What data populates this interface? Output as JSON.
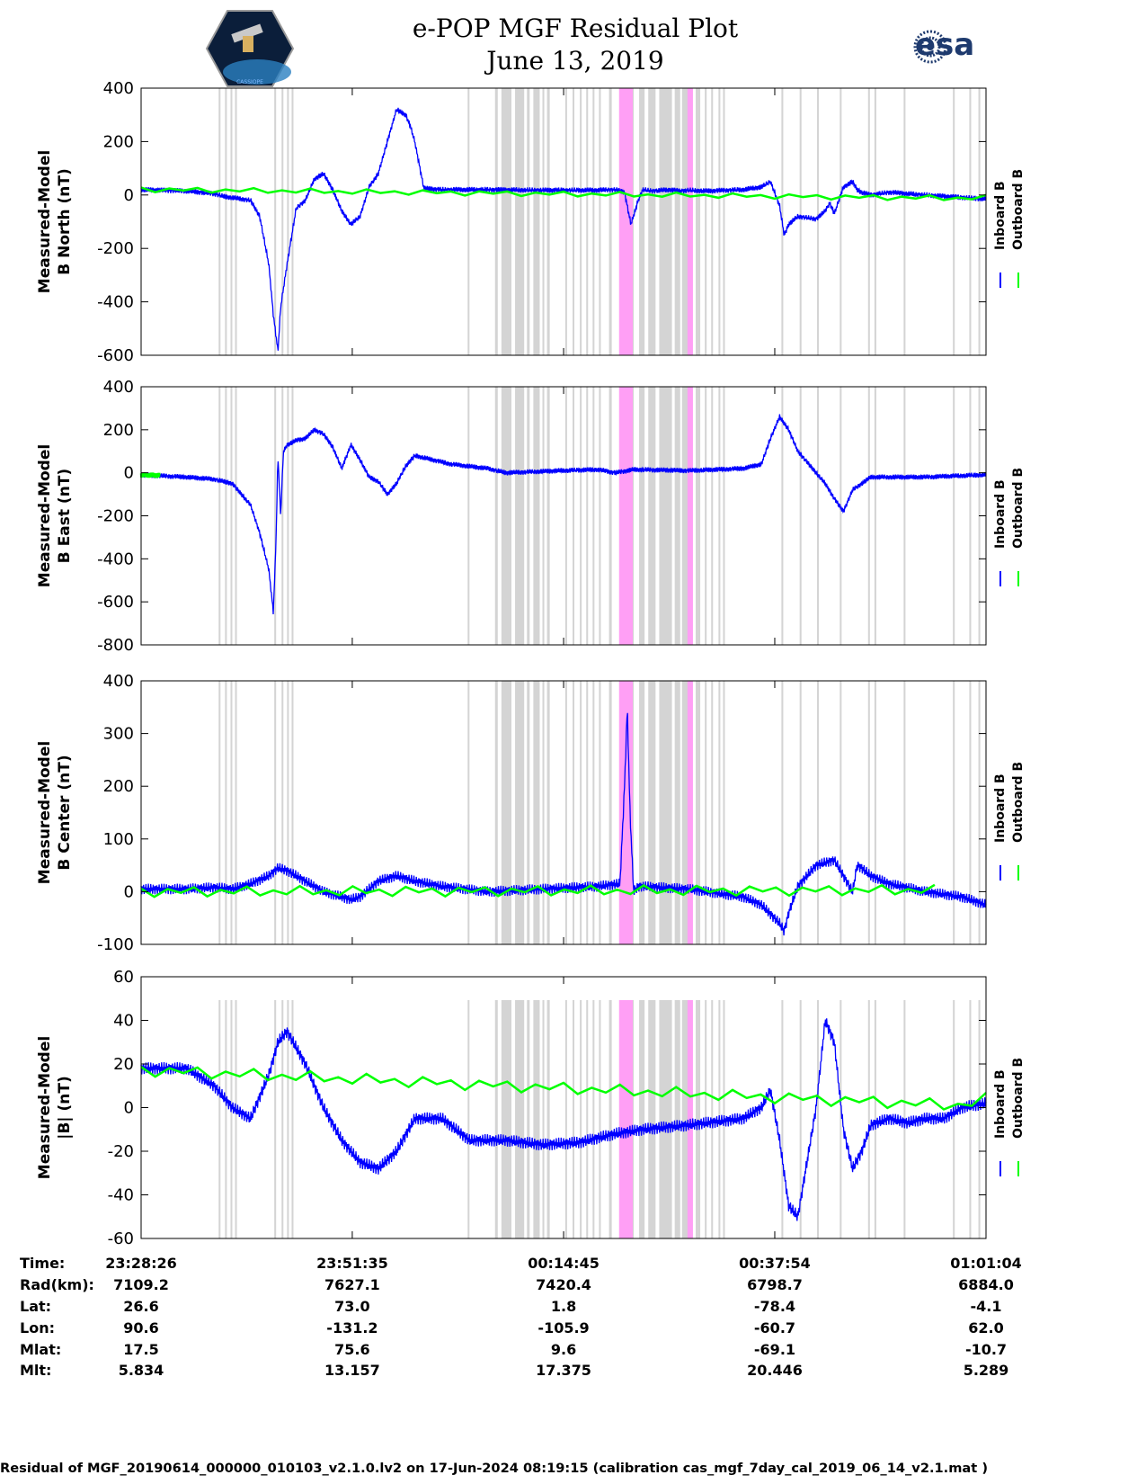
{
  "header": {
    "title": "e-POP MGF Residual Plot",
    "date": "June 13, 2019",
    "left_logo_name": "cassiope-mission-patch",
    "left_logo_caption": "CASSIOPE",
    "right_logo_name": "esa-logo",
    "right_logo_text": "esa"
  },
  "colors": {
    "inboard": "#0000ff",
    "outboard": "#00ff00",
    "gap_band": "#d4d4d4",
    "highlight_band": "#ff9ff5"
  },
  "legend": {
    "inboard_label": "Inboard B",
    "outboard_label": "Outboard B"
  },
  "chart_data": [
    {
      "type": "line",
      "ylabel_line1": "Measured-Model",
      "ylabel_line2": "B North (nT)",
      "ylim": [
        -600,
        400
      ],
      "yticks": [
        "400",
        "200",
        "0",
        "-200",
        "-400",
        "-600"
      ],
      "ytick_values": [
        400,
        200,
        0,
        -200,
        -400,
        -600
      ],
      "x_range_minutes": [
        0,
        92.63
      ],
      "series": [
        {
          "name": "Inboard B",
          "x": [
            0,
            2,
            5,
            8,
            9,
            10,
            12,
            13,
            14,
            14.5,
            15,
            15.3,
            15.6,
            16,
            17,
            18,
            19,
            20,
            21,
            22,
            23,
            24,
            25,
            26,
            27,
            28,
            29,
            29.5,
            30,
            31,
            33,
            38,
            44,
            50,
            52,
            53,
            53.7,
            54.5,
            55,
            56,
            58,
            59,
            60,
            62,
            66,
            68,
            69,
            70,
            70.5,
            71,
            72,
            74,
            75,
            75.5,
            76,
            77,
            78,
            78.5,
            79,
            80,
            82,
            86,
            92.63
          ],
          "y": [
            20,
            18,
            15,
            5,
            -5,
            -10,
            -20,
            -80,
            -260,
            -450,
            -585,
            -420,
            -350,
            -260,
            -50,
            -20,
            60,
            80,
            20,
            -60,
            -110,
            -80,
            30,
            80,
            200,
            320,
            300,
            260,
            200,
            25,
            20,
            20,
            18,
            18,
            20,
            10,
            -110,
            -20,
            20,
            15,
            20,
            15,
            18,
            15,
            20,
            30,
            50,
            -40,
            -150,
            -110,
            -80,
            -90,
            -60,
            -30,
            -70,
            30,
            50,
            20,
            10,
            0,
            10,
            0,
            -15
          ]
        },
        {
          "name": "Outboard B",
          "x": [
            0,
            2,
            90,
            92.63
          ],
          "y": [
            22,
            20,
            -12,
            -10
          ]
        }
      ]
    },
    {
      "type": "line",
      "ylabel_line1": "Measured-Model",
      "ylabel_line2": "B East (nT)",
      "ylim": [
        -800,
        400
      ],
      "yticks": [
        "400",
        "200",
        "0",
        "-200",
        "-400",
        "-600",
        "-800"
      ],
      "ytick_values": [
        400,
        200,
        0,
        -200,
        -400,
        -600,
        -800
      ],
      "x_range_minutes": [
        0,
        92.63
      ],
      "series": [
        {
          "name": "Inboard B",
          "x": [
            0,
            5,
            8,
            10,
            12,
            13,
            14,
            14.5,
            14.8,
            15,
            15.3,
            15.6,
            16,
            17,
            18,
            19,
            20,
            21,
            22,
            23,
            24,
            25,
            26,
            27,
            28,
            29,
            30,
            34,
            38,
            40,
            46,
            50,
            52,
            54,
            60,
            66,
            68,
            69,
            70,
            71,
            72,
            74,
            75,
            76,
            77,
            78,
            80,
            86,
            92,
            92.63
          ],
          "y": [
            -10,
            -20,
            -30,
            -50,
            -150,
            -280,
            -450,
            -650,
            -300,
            80,
            -200,
            100,
            130,
            150,
            160,
            200,
            180,
            120,
            20,
            130,
            60,
            -20,
            -40,
            -100,
            -50,
            30,
            80,
            40,
            20,
            0,
            10,
            15,
            0,
            15,
            10,
            20,
            40,
            160,
            260,
            200,
            100,
            0,
            -50,
            -120,
            -180,
            -80,
            -20,
            -20,
            -10,
            -10
          ]
        },
        {
          "name": "Outboard B",
          "x": [
            0,
            2
          ],
          "y": [
            -10,
            -12
          ]
        }
      ]
    },
    {
      "type": "line",
      "ylabel_line1": "Measured-Model",
      "ylabel_line2": "B Center (nT)",
      "ylim": [
        -100,
        400
      ],
      "yticks": [
        "400",
        "300",
        "200",
        "100",
        "0",
        "-100"
      ],
      "ytick_values": [
        400,
        300,
        200,
        100,
        0,
        -100
      ],
      "x_range_minutes": [
        0,
        92.63
      ],
      "series": [
        {
          "name": "Inboard B",
          "x": [
            0,
            5,
            8,
            10,
            12,
            14,
            15,
            16,
            18,
            20,
            22,
            23,
            24,
            26,
            28,
            30,
            33,
            38,
            44,
            50,
            52.5,
            53,
            53.3,
            53.6,
            54,
            54.5,
            55,
            60,
            62,
            66,
            68,
            70,
            70.5,
            71,
            72,
            74,
            76,
            77,
            78,
            78.5,
            79,
            80,
            82,
            86,
            90,
            92.63
          ],
          "y": [
            5,
            5,
            8,
            5,
            15,
            30,
            45,
            40,
            20,
            0,
            -10,
            -15,
            -10,
            20,
            30,
            20,
            10,
            0,
            5,
            10,
            15,
            200,
            350,
            150,
            0,
            10,
            10,
            5,
            0,
            -10,
            -25,
            -60,
            -75,
            -40,
            10,
            50,
            60,
            30,
            0,
            50,
            45,
            30,
            15,
            0,
            -10,
            -25
          ]
        },
        {
          "name": "Outboard B",
          "x": [
            0,
            1.5,
            86,
            87
          ],
          "y": [
            0,
            0,
            3,
            3
          ]
        }
      ]
    },
    {
      "type": "line",
      "ylabel_line1": "Measured-Model",
      "ylabel_line2": "|B| (nT)",
      "ylim": [
        -60,
        60
      ],
      "yticks": [
        "60",
        "40",
        "20",
        "0",
        "-20",
        "-40",
        "-60"
      ],
      "ytick_values": [
        60,
        40,
        20,
        0,
        -20,
        -40,
        -60
      ],
      "x_range_minutes": [
        0,
        92.63
      ],
      "series": [
        {
          "name": "Inboard B",
          "x": [
            0,
            5,
            8,
            10,
            12,
            14,
            15,
            16,
            18,
            20,
            22,
            24,
            26,
            28,
            30,
            33,
            36,
            40,
            44,
            48,
            50,
            52,
            55,
            60,
            66,
            68,
            69,
            70,
            71,
            72,
            74,
            75,
            76,
            77,
            78,
            79,
            80,
            82,
            84,
            86,
            88,
            90,
            92.63
          ],
          "y": [
            18,
            18,
            10,
            0,
            -5,
            15,
            30,
            35,
            20,
            0,
            -15,
            -25,
            -28,
            -20,
            -5,
            -5,
            -15,
            -15,
            -17,
            -16,
            -14,
            -12,
            -10,
            -8,
            -5,
            0,
            8,
            -15,
            -45,
            -50,
            0,
            40,
            30,
            -10,
            -28,
            -20,
            -8,
            -5,
            -7,
            -5,
            -5,
            0,
            2
          ]
        },
        {
          "name": "Outboard B",
          "x": [
            0,
            1.5,
            90,
            92.63
          ],
          "y": [
            17,
            17,
            1,
            4
          ]
        }
      ]
    }
  ],
  "x_axis": {
    "tick_minutes": [
      0,
      23.15,
      46.32,
      69.47,
      92.63
    ],
    "gap_bands_minutes": [
      [
        8.5,
        8.7
      ],
      [
        9.2,
        9.4
      ],
      [
        9.8,
        10.0
      ],
      [
        10.3,
        10.5
      ],
      [
        14.6,
        14.8
      ],
      [
        15.4,
        15.6
      ],
      [
        16.0,
        16.2
      ],
      [
        16.5,
        16.7
      ],
      [
        35.8,
        36.0
      ],
      [
        38.8,
        39.1
      ],
      [
        39.5,
        40.6
      ],
      [
        41.0,
        42.0
      ],
      [
        42.3,
        42.6
      ],
      [
        43.0,
        43.7
      ],
      [
        44.0,
        44.2
      ],
      [
        44.5,
        44.8
      ],
      [
        46.5,
        46.7
      ],
      [
        47.3,
        47.5
      ],
      [
        48.1,
        48.3
      ],
      [
        48.8,
        49.0
      ],
      [
        49.5,
        49.7
      ],
      [
        50.2,
        50.4
      ],
      [
        51.3,
        51.6
      ],
      [
        53.8,
        54.0
      ],
      [
        54.6,
        55.2
      ],
      [
        55.6,
        56.4
      ],
      [
        56.8,
        58.2
      ],
      [
        58.5,
        59.1
      ],
      [
        59.3,
        60.2
      ],
      [
        60.8,
        61.3
      ],
      [
        61.8,
        62.0
      ],
      [
        62.5,
        62.7
      ],
      [
        63.3,
        63.5
      ],
      [
        63.8,
        64.0
      ],
      [
        70.2,
        70.4
      ],
      [
        72.2,
        72.4
      ],
      [
        74.1,
        74.3
      ],
      [
        76.6,
        76.8
      ],
      [
        79.7,
        79.9
      ],
      [
        80.4,
        80.6
      ],
      [
        83.6,
        83.8
      ],
      [
        89.0,
        89.2
      ],
      [
        90.8,
        91.0
      ],
      [
        91.8,
        92.0
      ]
    ],
    "highlight_bands_minutes": [
      [
        52.4,
        53.9
      ],
      [
        59.9,
        60.5
      ]
    ]
  },
  "ephemeris": {
    "row_labels": [
      "Time:",
      "Rad(km):",
      "Lat:",
      "Lon:",
      "Mlat:",
      "Mlt:"
    ],
    "columns": [
      [
        "23:28:26",
        "7109.2",
        "26.6",
        "90.6",
        "17.5",
        "5.834"
      ],
      [
        "23:51:35",
        "7627.1",
        "73.0",
        "-131.2",
        "75.6",
        "13.157"
      ],
      [
        "00:14:45",
        "7420.4",
        "1.8",
        "-105.9",
        "9.6",
        "17.375"
      ],
      [
        "00:37:54",
        "6798.7",
        "-78.4",
        "-60.7",
        "-69.1",
        "20.446"
      ],
      [
        "01:01:04",
        "6884.0",
        "-4.1",
        "62.0",
        "-10.7",
        "5.289"
      ]
    ]
  },
  "caption": "Residual of MGF_20190614_000000_010103_v2.1.0.lv2 on 17-Jun-2024 08:19:15 (calibration cas_mgf_7day_cal_2019_06_14_v2.1.mat )"
}
